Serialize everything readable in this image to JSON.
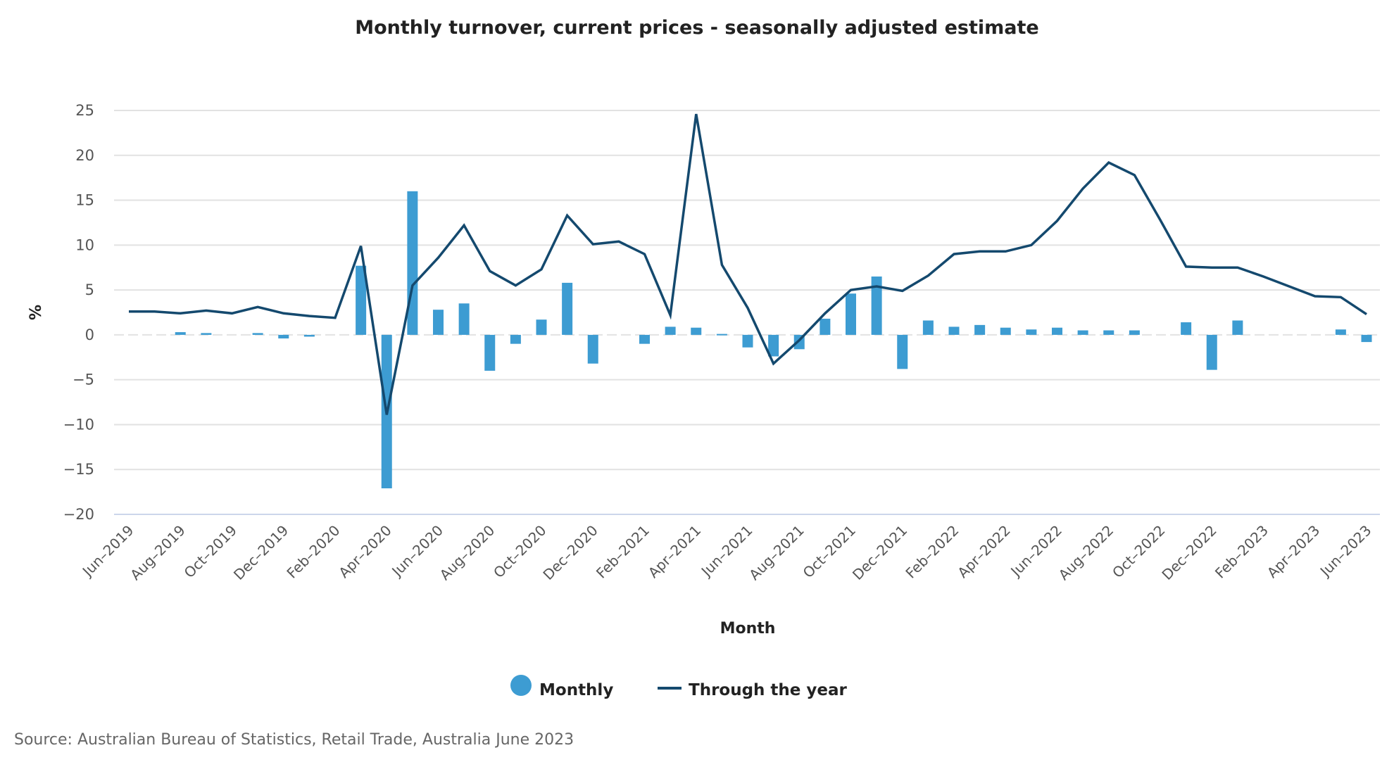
{
  "chart_data": {
    "type": "bar+line",
    "title": "Monthly turnover, current prices - seasonally adjusted estimate",
    "xlabel": "Month",
    "ylabel": "%",
    "ylim": [
      -20,
      25
    ],
    "yticks": [
      25,
      20,
      15,
      10,
      5,
      0,
      -5,
      -10,
      -15,
      -20
    ],
    "ytick_labels": [
      "25",
      "20",
      "15",
      "10",
      "5",
      "0",
      "−5",
      "−10",
      "−15",
      "−20"
    ],
    "grid": true,
    "legend_placement": "bottom-center",
    "categories": [
      "Jun-2019",
      "Jul-2019",
      "Aug-2019",
      "Sep-2019",
      "Oct-2019",
      "Nov-2019",
      "Dec-2019",
      "Jan-2020",
      "Feb-2020",
      "Mar-2020",
      "Apr-2020",
      "May-2020",
      "Jun-2020",
      "Jul-2020",
      "Aug-2020",
      "Sep-2020",
      "Oct-2020",
      "Nov-2020",
      "Dec-2020",
      "Jan-2021",
      "Feb-2021",
      "Mar-2021",
      "Apr-2021",
      "May-2021",
      "Jun-2021",
      "Jul-2021",
      "Aug-2021",
      "Sep-2021",
      "Oct-2021",
      "Nov-2021",
      "Dec-2021",
      "Jan-2022",
      "Feb-2022",
      "Mar-2022",
      "Apr-2022",
      "May-2022",
      "Jun-2022",
      "Jul-2022",
      "Aug-2022",
      "Sep-2022",
      "Oct-2022",
      "Nov-2022",
      "Dec-2022",
      "Jan-2023",
      "Feb-2023",
      "Mar-2023",
      "Apr-2023",
      "May-2023",
      "Jun-2023"
    ],
    "xtick_labels": [
      "Jun–2019",
      "Aug–2019",
      "Oct–2019",
      "Dec–2019",
      "Feb–2020",
      "Apr–2020",
      "Jun–2020",
      "Aug–2020",
      "Oct–2020",
      "Dec–2020",
      "Feb–2021",
      "Apr–2021",
      "Jun–2021",
      "Aug–2021",
      "Oct–2021",
      "Dec–2021",
      "Feb–2022",
      "Apr–2022",
      "Jun–2022",
      "Aug–2022",
      "Oct–2022",
      "Dec–2022",
      "Feb–2023",
      "Apr–2023",
      "Jun–2023"
    ],
    "series": [
      {
        "name": "Monthly",
        "type": "bar",
        "color": "#3d9cd2",
        "values": [
          0,
          0,
          0.3,
          0.2,
          0,
          0.2,
          -0.4,
          -0.2,
          0,
          7.7,
          -17.1,
          16.0,
          2.8,
          3.5,
          -4.0,
          -1.0,
          1.7,
          5.8,
          -3.2,
          0,
          -1.0,
          0.9,
          0.8,
          0.1,
          -1.4,
          -2.4,
          -1.6,
          1.8,
          4.6,
          6.5,
          -3.8,
          1.6,
          0.9,
          1.1,
          0.8,
          0.6,
          0.8,
          0.5,
          0.5,
          0.5,
          0,
          1.4,
          -3.9,
          1.6,
          0,
          0,
          0,
          0.6,
          -0.8
        ]
      },
      {
        "name": "Through the year",
        "type": "line",
        "color": "#14496e",
        "values": [
          2.6,
          2.6,
          2.4,
          2.7,
          2.4,
          3.1,
          2.4,
          2.1,
          1.9,
          9.9,
          -8.9,
          5.5,
          8.6,
          12.2,
          7.1,
          5.5,
          7.3,
          13.3,
          10.1,
          10.4,
          9.0,
          2.2,
          24.6,
          7.8,
          3.0,
          -3.2,
          -0.6,
          2.4,
          5.0,
          5.4,
          4.9,
          6.6,
          9.0,
          9.3,
          9.3,
          10.0,
          12.7,
          16.3,
          19.2,
          17.8,
          12.8,
          7.6,
          7.5,
          7.5,
          6.5,
          5.4,
          4.3,
          4.2,
          2.3
        ]
      }
    ]
  },
  "source": "Source: Australian Bureau of Statistics, Retail Trade, Australia June 2023"
}
